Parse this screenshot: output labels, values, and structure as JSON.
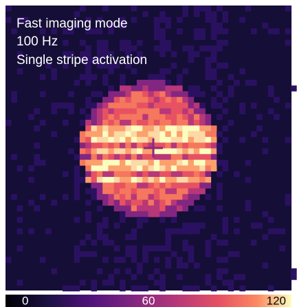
{
  "annotations": [
    "Fast imaging mode",
    "100 Hz",
    "Single stripe activation"
  ],
  "colorbar": {
    "range": [
      0,
      120
    ],
    "ticks": [
      0,
      60,
      120
    ]
  }
}
